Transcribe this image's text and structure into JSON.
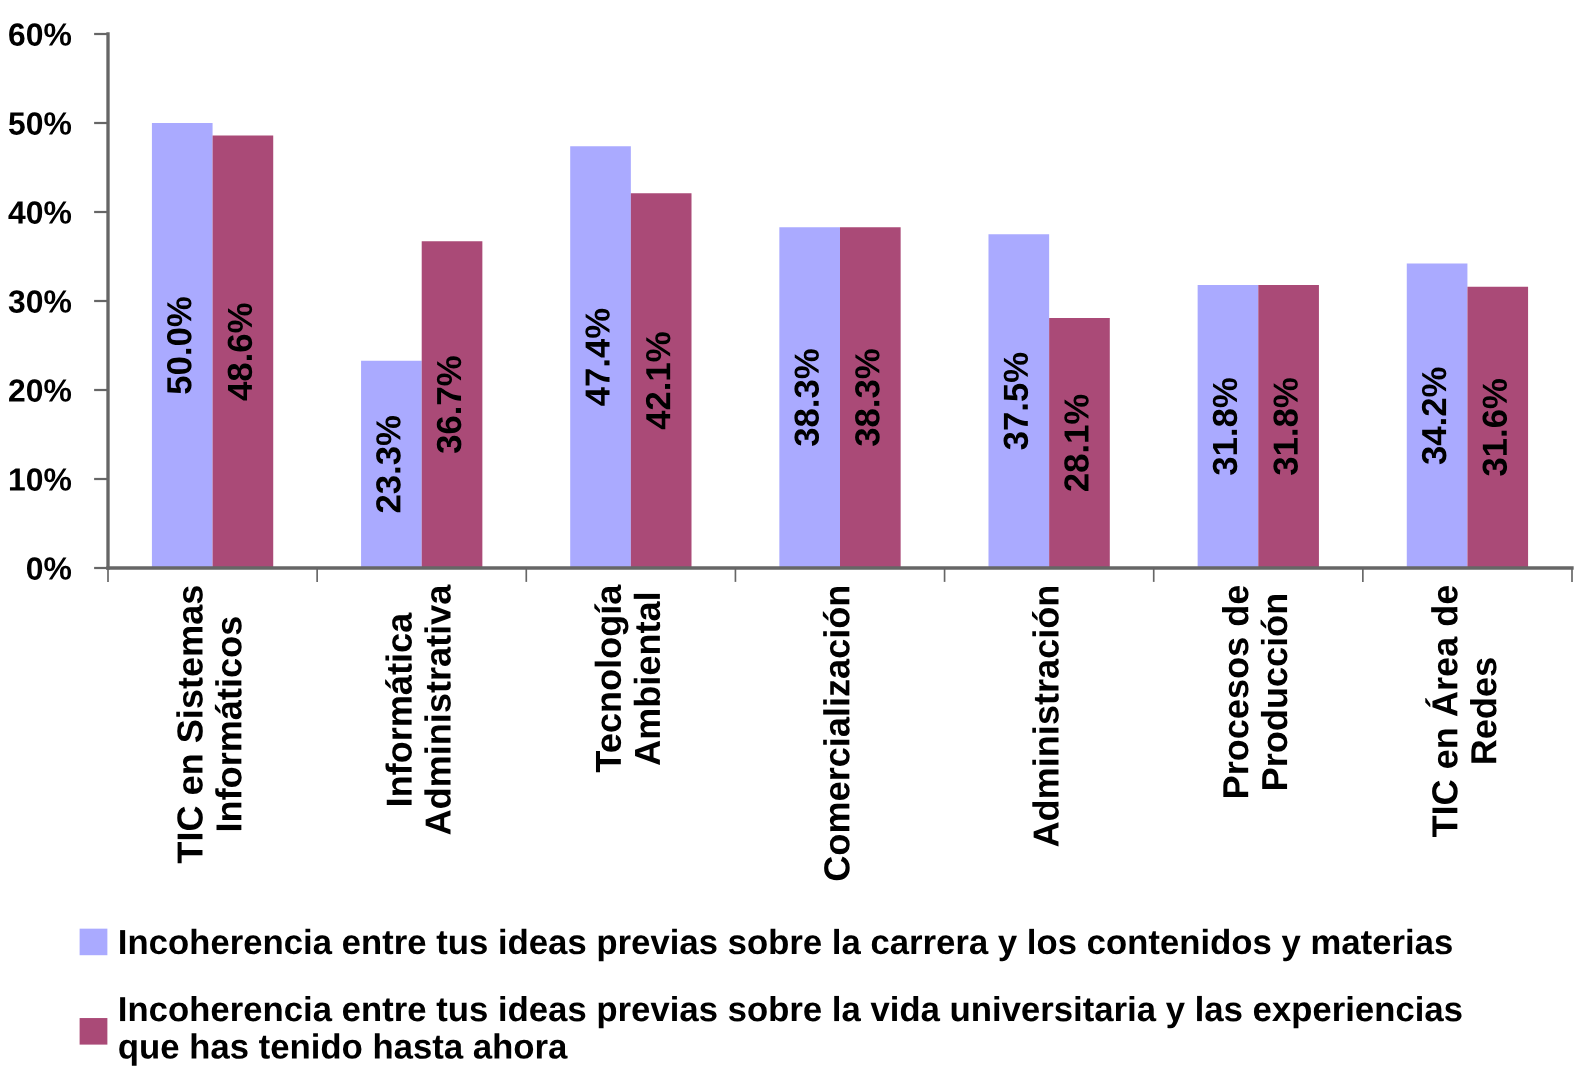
{
  "chart_data": {
    "type": "bar",
    "categories": [
      "TIC en Sistemas\nInformáticos",
      "Informática\nAdministrativa",
      "Tecnología\nAmbiental",
      "Comercialización",
      "Administración",
      "Procesos de\nProducción",
      "TIC en Área de\nRedes"
    ],
    "series": [
      {
        "name": "Incoherencia entre tus ideas previas sobre la carrera y los contenidos y materias",
        "color": "#aaaaff",
        "values": [
          50.0,
          23.3,
          47.4,
          38.3,
          37.5,
          31.8,
          34.2
        ],
        "value_labels": [
          "50.0%",
          "23.3%",
          "47.4%",
          "38.3%",
          "37.5%",
          "31.8%",
          "34.2%"
        ]
      },
      {
        "name": "Incoherencia entre tus ideas previas sobre la vida universitaria y las experiencias\nque has tenido hasta ahora",
        "color": "#aa4a77",
        "values": [
          48.6,
          36.7,
          42.1,
          38.3,
          28.1,
          31.8,
          31.6
        ],
        "value_labels": [
          "48.6%",
          "36.7%",
          "42.1%",
          "38.3%",
          "28.1%",
          "31.8%",
          "31.6%"
        ]
      }
    ],
    "ylim": [
      0,
      60
    ],
    "yticks": [
      {
        "value": 0,
        "label": "0%"
      },
      {
        "value": 10,
        "label": "10%"
      },
      {
        "value": 20,
        "label": "20%"
      },
      {
        "value": 30,
        "label": "30%"
      },
      {
        "value": 40,
        "label": "40%"
      },
      {
        "value": 50,
        "label": "50%"
      },
      {
        "value": 60,
        "label": "60%"
      }
    ],
    "legend": "bottom"
  }
}
